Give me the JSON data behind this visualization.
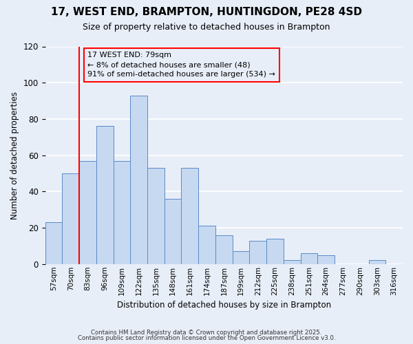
{
  "title": "17, WEST END, BRAMPTON, HUNTINGDON, PE28 4SD",
  "subtitle": "Size of property relative to detached houses in Brampton",
  "xlabel": "Distribution of detached houses by size in Brampton",
  "ylabel": "Number of detached properties",
  "bin_labels": [
    "57sqm",
    "70sqm",
    "83sqm",
    "96sqm",
    "109sqm",
    "122sqm",
    "135sqm",
    "148sqm",
    "161sqm",
    "174sqm",
    "187sqm",
    "199sqm",
    "212sqm",
    "225sqm",
    "238sqm",
    "251sqm",
    "264sqm",
    "277sqm",
    "290sqm",
    "303sqm",
    "316sqm"
  ],
  "bar_heights": [
    23,
    50,
    57,
    76,
    57,
    93,
    53,
    36,
    53,
    21,
    16,
    7,
    13,
    14,
    2,
    6,
    5,
    0,
    0,
    2,
    0
  ],
  "bar_color": "#c6d9f1",
  "bar_edge_color": "#5a8ac6",
  "vline_x_index": 1.5,
  "vline_color": "red",
  "annotation_title": "17 WEST END: 79sqm",
  "annotation_line1": "← 8% of detached houses are smaller (48)",
  "annotation_line2": "91% of semi-detached houses are larger (534) →",
  "annotation_box_edge": "red",
  "ylim": [
    0,
    120
  ],
  "yticks": [
    0,
    20,
    40,
    60,
    80,
    100,
    120
  ],
  "footer1": "Contains HM Land Registry data © Crown copyright and database right 2025.",
  "footer2": "Contains public sector information licensed under the Open Government Licence v3.0.",
  "background_color": "#e8eef8"
}
